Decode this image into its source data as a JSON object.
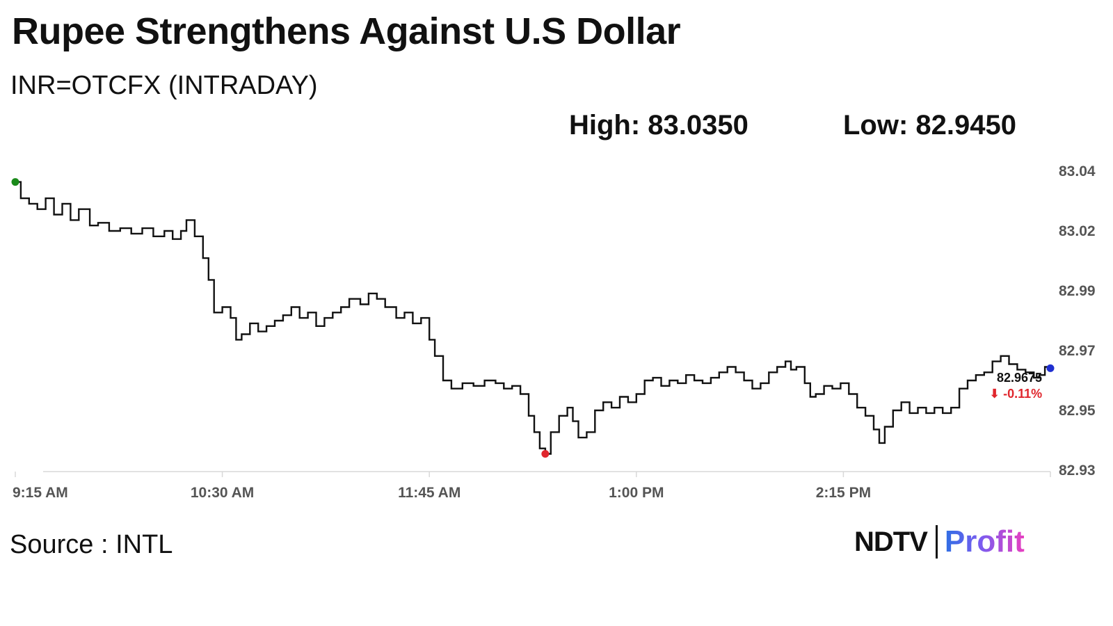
{
  "header": {
    "title": "Rupee Strengthens Against U.S Dollar",
    "subtitle": "INR=OTCFX (INTRADAY)",
    "high_text": "High: 83.0350",
    "low_text": "Low: 82.9450"
  },
  "footer": {
    "source": "Source : INTL",
    "brand_ndtv": "NDTV",
    "brand_profit": "Profit"
  },
  "colors": {
    "line": "#111111",
    "start_marker": "#1a8a1a",
    "low_marker": "#e0262d",
    "last_marker": "#1f2fd0",
    "change_negative": "#e0262d",
    "axis_text": "#555555"
  },
  "chart_data": {
    "type": "line",
    "title": "Rupee Strengthens Against U.S Dollar",
    "subtitle": "INR=OTCFX (INTRADAY)",
    "x_tick_labels": [
      "9:15 AM",
      "10:30 AM",
      "11:45 AM",
      "1:00 PM",
      "2:15 PM"
    ],
    "y_tick_labels": [
      "83.04",
      "83.02",
      "82.99",
      "82.97",
      "82.95",
      "82.93"
    ],
    "ylim": [
      82.93,
      83.04
    ],
    "x_range_minutes": [
      0,
      375
    ],
    "grid": false,
    "last_value_label": "82.9675",
    "change_label": "⬇ -0.11%",
    "series": [
      {
        "points": [
          [
            0,
            83.036
          ],
          [
            2,
            83.03
          ],
          [
            5,
            83.028
          ],
          [
            8,
            83.026
          ],
          [
            11,
            83.03
          ],
          [
            14,
            83.024
          ],
          [
            17,
            83.028
          ],
          [
            20,
            83.022
          ],
          [
            23,
            83.026
          ],
          [
            27,
            83.02
          ],
          [
            30,
            83.021
          ],
          [
            34,
            83.018
          ],
          [
            38,
            83.019
          ],
          [
            42,
            83.017
          ],
          [
            46,
            83.019
          ],
          [
            50,
            83.016
          ],
          [
            54,
            83.018
          ],
          [
            57,
            83.015
          ],
          [
            60,
            83.018
          ],
          [
            62,
            83.022
          ],
          [
            65,
            83.016
          ],
          [
            68,
            83.008
          ],
          [
            70,
            83.0
          ],
          [
            72,
            82.988
          ],
          [
            75,
            82.99
          ],
          [
            78,
            82.986
          ],
          [
            80,
            82.978
          ],
          [
            82,
            82.98
          ],
          [
            85,
            82.984
          ],
          [
            88,
            82.981
          ],
          [
            91,
            82.983
          ],
          [
            94,
            82.985
          ],
          [
            97,
            82.987
          ],
          [
            100,
            82.99
          ],
          [
            103,
            82.986
          ],
          [
            106,
            82.988
          ],
          [
            109,
            82.983
          ],
          [
            112,
            82.986
          ],
          [
            115,
            82.988
          ],
          [
            118,
            82.99
          ],
          [
            121,
            82.993
          ],
          [
            125,
            82.991
          ],
          [
            128,
            82.995
          ],
          [
            131,
            82.993
          ],
          [
            134,
            82.99
          ],
          [
            138,
            82.986
          ],
          [
            141,
            82.988
          ],
          [
            144,
            82.984
          ],
          [
            147,
            82.986
          ],
          [
            150,
            82.978
          ],
          [
            152,
            82.972
          ],
          [
            155,
            82.963
          ],
          [
            158,
            82.96
          ],
          [
            162,
            82.962
          ],
          [
            166,
            82.961
          ],
          [
            170,
            82.963
          ],
          [
            174,
            82.962
          ],
          [
            177,
            82.96
          ],
          [
            180,
            82.961
          ],
          [
            183,
            82.958
          ],
          [
            186,
            82.95
          ],
          [
            188,
            82.944
          ],
          [
            190,
            82.938
          ],
          [
            192,
            82.936
          ],
          [
            194,
            82.944
          ],
          [
            197,
            82.95
          ],
          [
            200,
            82.953
          ],
          [
            202,
            82.948
          ],
          [
            204,
            82.942
          ],
          [
            207,
            82.944
          ],
          [
            210,
            82.952
          ],
          [
            213,
            82.955
          ],
          [
            216,
            82.953
          ],
          [
            219,
            82.957
          ],
          [
            222,
            82.955
          ],
          [
            225,
            82.958
          ],
          [
            228,
            82.963
          ],
          [
            231,
            82.964
          ],
          [
            234,
            82.961
          ],
          [
            237,
            82.963
          ],
          [
            240,
            82.962
          ],
          [
            243,
            82.965
          ],
          [
            246,
            82.963
          ],
          [
            249,
            82.962
          ],
          [
            252,
            82.964
          ],
          [
            255,
            82.966
          ],
          [
            258,
            82.968
          ],
          [
            261,
            82.966
          ],
          [
            264,
            82.963
          ],
          [
            267,
            82.96
          ],
          [
            270,
            82.962
          ],
          [
            273,
            82.966
          ],
          [
            276,
            82.968
          ],
          [
            279,
            82.97
          ],
          [
            281,
            82.967
          ],
          [
            283,
            82.968
          ],
          [
            286,
            82.962
          ],
          [
            288,
            82.957
          ],
          [
            290,
            82.958
          ],
          [
            293,
            82.961
          ],
          [
            296,
            82.96
          ],
          [
            299,
            82.962
          ],
          [
            302,
            82.958
          ],
          [
            305,
            82.953
          ],
          [
            308,
            82.95
          ],
          [
            311,
            82.945
          ],
          [
            313,
            82.94
          ],
          [
            315,
            82.946
          ],
          [
            318,
            82.952
          ],
          [
            321,
            82.955
          ],
          [
            324,
            82.951
          ],
          [
            327,
            82.953
          ],
          [
            330,
            82.951
          ],
          [
            333,
            82.953
          ],
          [
            336,
            82.951
          ],
          [
            339,
            82.953
          ],
          [
            342,
            82.96
          ],
          [
            345,
            82.963
          ],
          [
            348,
            82.965
          ],
          [
            351,
            82.966
          ],
          [
            354,
            82.97
          ],
          [
            357,
            82.972
          ],
          [
            360,
            82.969
          ],
          [
            363,
            82.967
          ],
          [
            366,
            82.966
          ],
          [
            369,
            82.964
          ],
          [
            371,
            82.965
          ],
          [
            373,
            82.968
          ],
          [
            375,
            82.9675
          ]
        ]
      }
    ]
  }
}
